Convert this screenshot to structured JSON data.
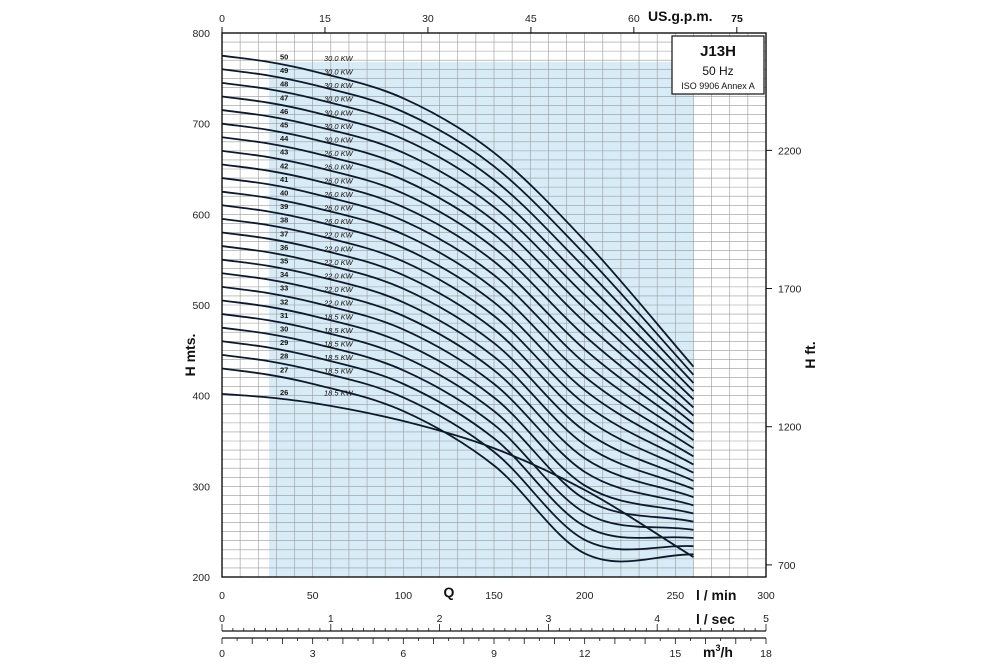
{
  "chart_data": {
    "type": "line",
    "title": "J13H",
    "frequency_label": "50 Hz",
    "standard_label": "ISO 9906 Annex A",
    "xlabel": "Q",
    "x_unit": "l / min",
    "ylabel": "H mts.",
    "y2label": "H ft.",
    "xlim": [
      0,
      300
    ],
    "ylim": [
      200,
      800
    ],
    "x_ticks": [
      0,
      50,
      100,
      150,
      200,
      250,
      300
    ],
    "y_ticks": [
      200,
      300,
      400,
      500,
      600,
      700,
      800
    ],
    "ft_ticks": [
      700,
      1200,
      1700,
      2200
    ],
    "gpm_axis": {
      "unit": "US.g.p.m.",
      "ticks": [
        0,
        15,
        30,
        45,
        60,
        75
      ]
    },
    "lsec_axis": {
      "unit": "l / sec",
      "ticks": [
        0,
        1,
        2,
        3,
        4,
        5
      ]
    },
    "m3h_axis": {
      "unit": "m3/h",
      "ticks": [
        0,
        3,
        6,
        9,
        12,
        15,
        18
      ]
    },
    "operating_range": [
      26,
      260
    ],
    "grid": true,
    "series": [
      {
        "name": "50",
        "power": "30.0 KW",
        "x": [
          0,
          26,
          50,
          100,
          150,
          200,
          260
        ],
        "y": [
          775,
          768,
          758,
          728,
          668,
          571,
          432
        ]
      },
      {
        "name": "49",
        "power": "30.0 KW",
        "x": [
          0,
          26,
          50,
          100,
          150,
          200,
          260
        ],
        "y": [
          760,
          753,
          743,
          713,
          653,
          556,
          423
        ]
      },
      {
        "name": "48",
        "power": "30.0 KW",
        "x": [
          0,
          26,
          50,
          100,
          150,
          200,
          260
        ],
        "y": [
          745,
          738,
          728,
          698,
          638,
          541,
          414
        ]
      },
      {
        "name": "47",
        "power": "30.0 KW",
        "x": [
          0,
          26,
          50,
          100,
          150,
          200,
          260
        ],
        "y": [
          730,
          723,
          713,
          683,
          623,
          526,
          405
        ]
      },
      {
        "name": "46",
        "power": "30.0 KW",
        "x": [
          0,
          26,
          50,
          100,
          150,
          200,
          260
        ],
        "y": [
          715,
          708,
          698,
          668,
          608,
          511,
          396
        ]
      },
      {
        "name": "45",
        "power": "30.0 KW",
        "x": [
          0,
          26,
          50,
          100,
          150,
          200,
          260
        ],
        "y": [
          700,
          693,
          683,
          653,
          593,
          496,
          387
        ]
      },
      {
        "name": "44",
        "power": "30.0 KW",
        "x": [
          0,
          26,
          50,
          100,
          150,
          200,
          260
        ],
        "y": [
          685,
          678,
          668,
          638,
          578,
          481,
          378
        ]
      },
      {
        "name": "43",
        "power": "26.0 KW",
        "x": [
          0,
          26,
          50,
          100,
          150,
          200,
          260
        ],
        "y": [
          670,
          663,
          653,
          623,
          563,
          466,
          369
        ]
      },
      {
        "name": "42",
        "power": "26.0 KW",
        "x": [
          0,
          26,
          50,
          100,
          150,
          200,
          260
        ],
        "y": [
          655,
          648,
          638,
          608,
          548,
          451,
          360
        ]
      },
      {
        "name": "41",
        "power": "26.0 KW",
        "x": [
          0,
          26,
          50,
          100,
          150,
          200,
          260
        ],
        "y": [
          640,
          633,
          623,
          593,
          533,
          436,
          351
        ]
      },
      {
        "name": "40",
        "power": "26.0 KW",
        "x": [
          0,
          26,
          50,
          100,
          150,
          200,
          260
        ],
        "y": [
          625,
          618,
          608,
          578,
          518,
          421,
          342
        ]
      },
      {
        "name": "39",
        "power": "26.0 KW",
        "x": [
          0,
          26,
          50,
          100,
          150,
          200,
          260
        ],
        "y": [
          610,
          603,
          593,
          563,
          503,
          406,
          333
        ]
      },
      {
        "name": "38",
        "power": "26.0 KW",
        "x": [
          0,
          26,
          50,
          100,
          150,
          200,
          260
        ],
        "y": [
          595,
          588,
          578,
          548,
          488,
          391,
          324
        ]
      },
      {
        "name": "37",
        "power": "22.0 KW",
        "x": [
          0,
          26,
          50,
          100,
          150,
          200,
          260
        ],
        "y": [
          580,
          573,
          563,
          533,
          473,
          376,
          315
        ]
      },
      {
        "name": "36",
        "power": "22.0 KW",
        "x": [
          0,
          26,
          50,
          100,
          150,
          200,
          260
        ],
        "y": [
          565,
          558,
          548,
          518,
          458,
          361,
          306
        ]
      },
      {
        "name": "35",
        "power": "22.0 KW",
        "x": [
          0,
          26,
          50,
          100,
          150,
          200,
          260
        ],
        "y": [
          550,
          543,
          533,
          503,
          443,
          346,
          297
        ]
      },
      {
        "name": "34",
        "power": "22.0 KW",
        "x": [
          0,
          26,
          50,
          100,
          150,
          200,
          260
        ],
        "y": [
          535,
          528,
          518,
          488,
          428,
          331,
          288
        ]
      },
      {
        "name": "33",
        "power": "22.0 KW",
        "x": [
          0,
          26,
          50,
          100,
          150,
          200,
          260
        ],
        "y": [
          520,
          513,
          503,
          473,
          413,
          316,
          279
        ]
      },
      {
        "name": "32",
        "power": "22.0 KW",
        "x": [
          0,
          26,
          50,
          100,
          150,
          200,
          260
        ],
        "y": [
          505,
          498,
          488,
          458,
          398,
          301,
          270
        ]
      },
      {
        "name": "31",
        "power": "18.5 KW",
        "x": [
          0,
          26,
          50,
          100,
          150,
          200,
          260
        ],
        "y": [
          490,
          483,
          473,
          443,
          383,
          286,
          261
        ]
      },
      {
        "name": "30",
        "power": "18.5 KW",
        "x": [
          0,
          26,
          50,
          100,
          150,
          200,
          260
        ],
        "y": [
          475,
          468,
          458,
          428,
          368,
          271,
          252
        ]
      },
      {
        "name": "29",
        "power": "18.5 KW",
        "x": [
          0,
          26,
          50,
          100,
          150,
          200,
          260
        ],
        "y": [
          460,
          453,
          443,
          413,
          353,
          256,
          243
        ]
      },
      {
        "name": "28",
        "power": "18.5 KW",
        "x": [
          0,
          26,
          50,
          100,
          150,
          200,
          260
        ],
        "y": [
          445,
          438,
          428,
          398,
          338,
          241,
          234
        ]
      },
      {
        "name": "27",
        "power": "18.5 KW",
        "x": [
          0,
          26,
          50,
          100,
          150,
          200,
          260
        ],
        "y": [
          430,
          423,
          413,
          383,
          323,
          226,
          225
        ]
      },
      {
        "name": "26",
        "power": "18.5 KW",
        "x": [
          0,
          26,
          50,
          100,
          150,
          200,
          260
        ],
        "y": [
          402,
          398,
          392,
          372,
          342,
          296,
          222
        ]
      }
    ]
  },
  "colors": {
    "operating_fill": "#d8ecf8",
    "curve": "#0e1a2c",
    "grid": "#9a9a9a",
    "frame": "#111111"
  }
}
